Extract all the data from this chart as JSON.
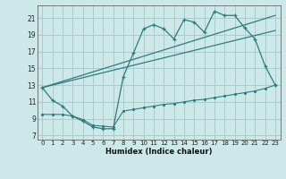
{
  "title": "",
  "xlabel": "Humidex (Indice chaleur)",
  "bg_color": "#cce8e8",
  "grid_color": "#aacccc",
  "line_color": "#2e7d7d",
  "xlim": [
    -0.5,
    23.5
  ],
  "ylim": [
    6.5,
    22.5
  ],
  "xticks": [
    0,
    1,
    2,
    3,
    4,
    5,
    6,
    7,
    8,
    9,
    10,
    11,
    12,
    13,
    14,
    15,
    16,
    17,
    18,
    19,
    20,
    21,
    22,
    23
  ],
  "yticks": [
    7,
    9,
    11,
    13,
    15,
    17,
    19,
    21
  ],
  "main_x": [
    0,
    1,
    2,
    3,
    4,
    5,
    6,
    7,
    8,
    9,
    10,
    11,
    12,
    13,
    14,
    15,
    16,
    17,
    18,
    19,
    20,
    21,
    22,
    23
  ],
  "main_y": [
    12.7,
    11.2,
    10.5,
    9.3,
    8.7,
    8.0,
    7.8,
    7.8,
    14.0,
    16.8,
    19.7,
    20.2,
    19.7,
    18.5,
    20.8,
    20.5,
    19.3,
    21.8,
    21.3,
    21.3,
    19.8,
    18.5,
    15.3,
    13.0
  ],
  "trend1_x": [
    0,
    23
  ],
  "trend1_y": [
    12.7,
    21.3
  ],
  "trend2_x": [
    0,
    23
  ],
  "trend2_y": [
    12.7,
    19.5
  ],
  "flat_x": [
    0,
    1,
    2,
    3,
    4,
    5,
    6,
    7,
    8,
    9,
    10,
    11,
    12,
    13,
    14,
    15,
    16,
    17,
    18,
    19,
    20,
    21,
    22,
    23
  ],
  "flat_y": [
    9.5,
    9.5,
    9.5,
    9.3,
    8.9,
    8.2,
    8.1,
    8.0,
    9.9,
    10.1,
    10.3,
    10.5,
    10.7,
    10.8,
    11.0,
    11.2,
    11.3,
    11.5,
    11.7,
    11.9,
    12.1,
    12.3,
    12.6,
    13.0
  ]
}
